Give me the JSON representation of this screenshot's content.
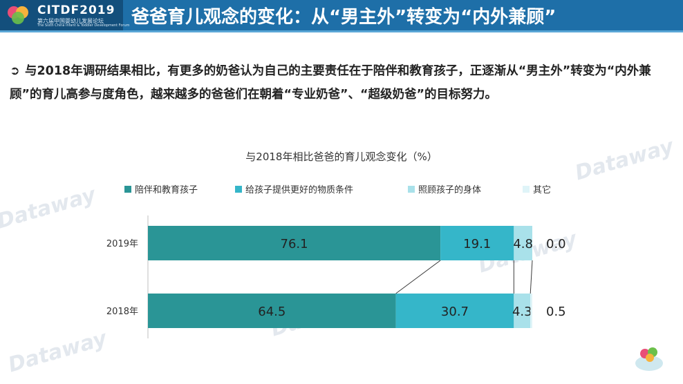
{
  "header": {
    "logo_title": "CITDF2019",
    "logo_subtitle": "第六届中国婴幼儿发展论坛",
    "logo_subtitle_en": "The Sixth China Infant & Toddler Development Forum",
    "title": "爸爸育儿观念的变化：从“男主外”转变为“内外兼顾”"
  },
  "summary": {
    "bullet": "➲",
    "text": "与2018年调研结果相比，有更多的奶爸认为自己的主要责任在于陪伴和教育孩子，正逐渐从“男主外”转变为“内外兼顾”的育儿高参与度角色，越来越多的爸爸们在朝着“专业奶爸”、“超级奶爸”的目标努力。"
  },
  "watermark": "Dataway",
  "colors": {
    "header_bg": "#1e6fa8",
    "series": [
      "#2a9596",
      "#35b6c9",
      "#a9e1ea",
      "#dff4f8"
    ]
  },
  "chart_data": {
    "type": "bar",
    "orientation": "horizontal",
    "stacked": true,
    "title": "与2018年相比爸爸的育儿观念变化（%）",
    "categories": [
      "2019年",
      "2018年"
    ],
    "series": [
      {
        "name": "陪伴和教育孩子",
        "values": [
          76.1,
          64.5
        ]
      },
      {
        "name": "给孩子提供更好的物质条件",
        "values": [
          19.1,
          30.7
        ]
      },
      {
        "name": "照顾孩子的身体",
        "values": [
          4.8,
          4.3
        ]
      },
      {
        "name": "其它",
        "values": [
          0.0,
          0.5
        ]
      }
    ],
    "xlim": [
      0,
      100
    ],
    "legend": "top",
    "grid": false,
    "data_labels": true,
    "series_lines": true
  }
}
